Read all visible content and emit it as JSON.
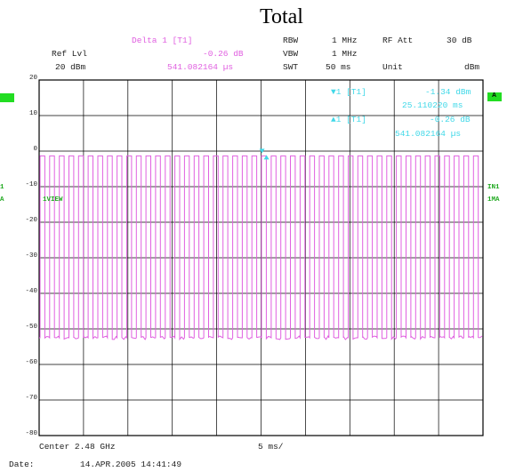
{
  "title": "Total",
  "header": {
    "ref_lvl_label": "Ref Lvl",
    "ref_lvl_value": "20 dBm",
    "delta_label": "Delta 1 [T1]",
    "delta_value": "-0.26 dB",
    "delta_time": "541.082164 µs",
    "rbw_label": "RBW",
    "rbw_value": "1 MHz",
    "vbw_label": "VBW",
    "vbw_value": "1 MHz",
    "swt_label": "SWT",
    "swt_value": "50 ms",
    "rfatt_label": "RF Att",
    "rfatt_value": "30 dB",
    "unit_label": "Unit",
    "unit_value": "dBm"
  },
  "markers": {
    "m1_label": "1 [T1]",
    "m1_value": "-1.34 dBm",
    "m1_time": "25.110220 ms",
    "d1_label": "1 [T1]",
    "d1_value": "-0.26 dB",
    "d1_time": "541.082164 µs"
  },
  "side": {
    "left_box": "",
    "right_box": "A",
    "left_in1": "1",
    "left_a": "A",
    "trace_label": "1VIEW",
    "right_in1": "IN1",
    "right_ma": "1MA"
  },
  "footer": {
    "center": "Center 2.48 GHz",
    "div": "5 ms/",
    "date_label": "Date:",
    "date_value": "14.APR.2005  14:41:49"
  },
  "colors": {
    "trace": "#e060e0",
    "marker": "#40d8e8",
    "grid": "#000000",
    "side_box": "#22dd22"
  },
  "chart_data": {
    "type": "line",
    "title": "Total",
    "xlabel": "",
    "ylabel": "",
    "x_span_ms": 50,
    "x_divisions": 10,
    "ylim": [
      -80,
      20
    ],
    "yticks": [
      20,
      10,
      0,
      -10,
      -20,
      -30,
      -40,
      -50,
      -60,
      -70,
      -80
    ],
    "grid": true,
    "pulse_count": 46,
    "pulse_period_ms": 1.085,
    "pulse_width_ms": 0.541,
    "high_level_dbm": -1.34,
    "low_level_dbm": -52.5
  }
}
